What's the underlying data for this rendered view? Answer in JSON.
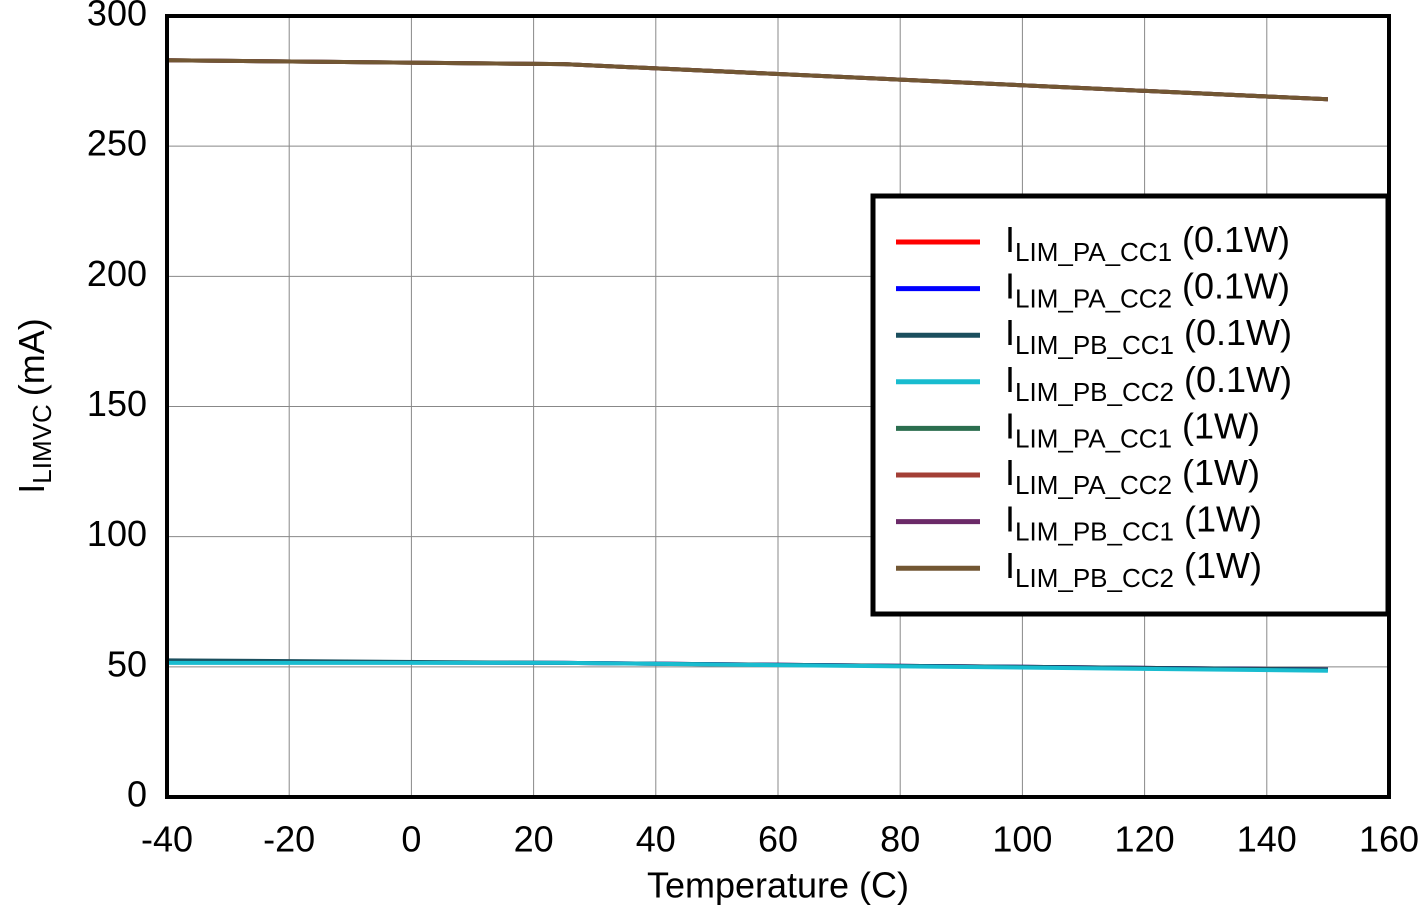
{
  "chart_data": {
    "type": "line",
    "xlabel": "Temperature (C)",
    "ylabel": [
      "I",
      "LIMVC",
      "(mA)"
    ],
    "x": [
      -40,
      25,
      150
    ],
    "xlim": [
      -40,
      160
    ],
    "xticks": [
      -40,
      -20,
      0,
      20,
      40,
      60,
      80,
      100,
      120,
      140,
      160
    ],
    "ylim": [
      0,
      300
    ],
    "yticks": [
      0,
      50,
      100,
      150,
      200,
      250,
      300
    ],
    "grid": true,
    "legend": "right",
    "series": [
      {
        "name": [
          "I",
          "LIM_PA_CC1",
          "(0.1W)"
        ],
        "color": "#ff0000",
        "values": [
          52,
          51.5,
          49
        ]
      },
      {
        "name": [
          "I",
          "LIM_PA_CC2",
          "(0.1W)"
        ],
        "color": "#0000ff",
        "values": [
          52,
          51.5,
          49
        ]
      },
      {
        "name": [
          "I",
          "LIM_PB_CC1",
          "(0.1W)"
        ],
        "color": "#1b4f5e",
        "values": [
          52.5,
          51.5,
          49
        ]
      },
      {
        "name": [
          "I",
          "LIM_PB_CC2",
          "(0.1W)"
        ],
        "color": "#19bccf",
        "values": [
          51.5,
          51.5,
          48.5
        ]
      },
      {
        "name": [
          "I",
          "LIM_PA_CC1",
          "(1W)"
        ],
        "color": "#2b6e4f",
        "values": [
          283,
          281.5,
          268
        ]
      },
      {
        "name": [
          "I",
          "LIM_PA_CC2",
          "(1W)"
        ],
        "color": "#a33f36",
        "values": [
          283,
          281.5,
          268
        ]
      },
      {
        "name": [
          "I",
          "LIM_PB_CC1",
          "(1W)"
        ],
        "color": "#6b2a68",
        "values": [
          283,
          281.5,
          268
        ]
      },
      {
        "name": [
          "I",
          "LIM_PB_CC2",
          "(1W)"
        ],
        "color": "#725733",
        "values": [
          283,
          281.5,
          268
        ]
      }
    ]
  }
}
